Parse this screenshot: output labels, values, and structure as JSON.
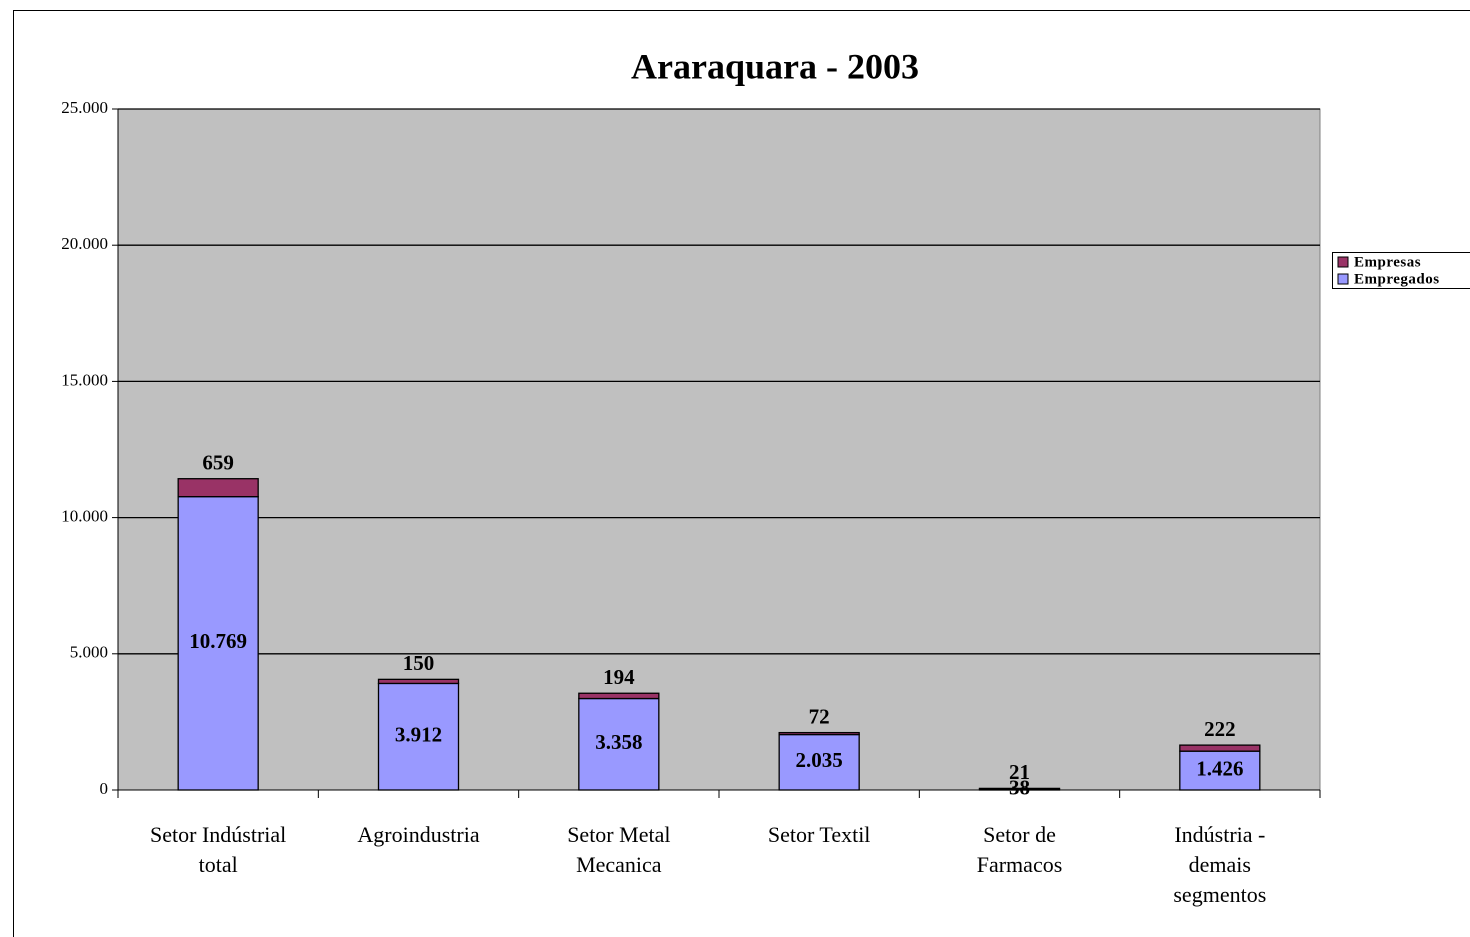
{
  "chart_data": {
    "type": "stacked_bar",
    "title": "Araraquara - 2003",
    "categories": [
      "Setor Indústrial\ntotal",
      "Agroindustria",
      "Setor Metal\nMecanica",
      "Setor Textil",
      "Setor de\nFarmacos",
      "Indústria -\ndemais\nsegmentos"
    ],
    "series": [
      {
        "name": "Empregados",
        "color": "#9999ff",
        "values": [
          10769,
          3912,
          3358,
          2035,
          38,
          1426
        ],
        "value_labels": [
          "10.769",
          "3.912",
          "3.358",
          "2.035",
          "38",
          "1.426"
        ]
      },
      {
        "name": "Empresas",
        "color": "#993366",
        "values": [
          659,
          150,
          194,
          72,
          21,
          222
        ]
      }
    ],
    "ylim": [
      0,
      25000
    ],
    "yticks": [
      0,
      {
        "value": 5000,
        "label": "5.000"
      },
      {
        "value": 10000,
        "label": "10.000"
      },
      {
        "value": 15000,
        "label": "15.000"
      },
      {
        "value": 20000,
        "label": "20.000"
      },
      {
        "value": 25000,
        "label": "25.000"
      }
    ],
    "grid": true,
    "legend": "right",
    "plot_background": "#c0c0c0"
  }
}
